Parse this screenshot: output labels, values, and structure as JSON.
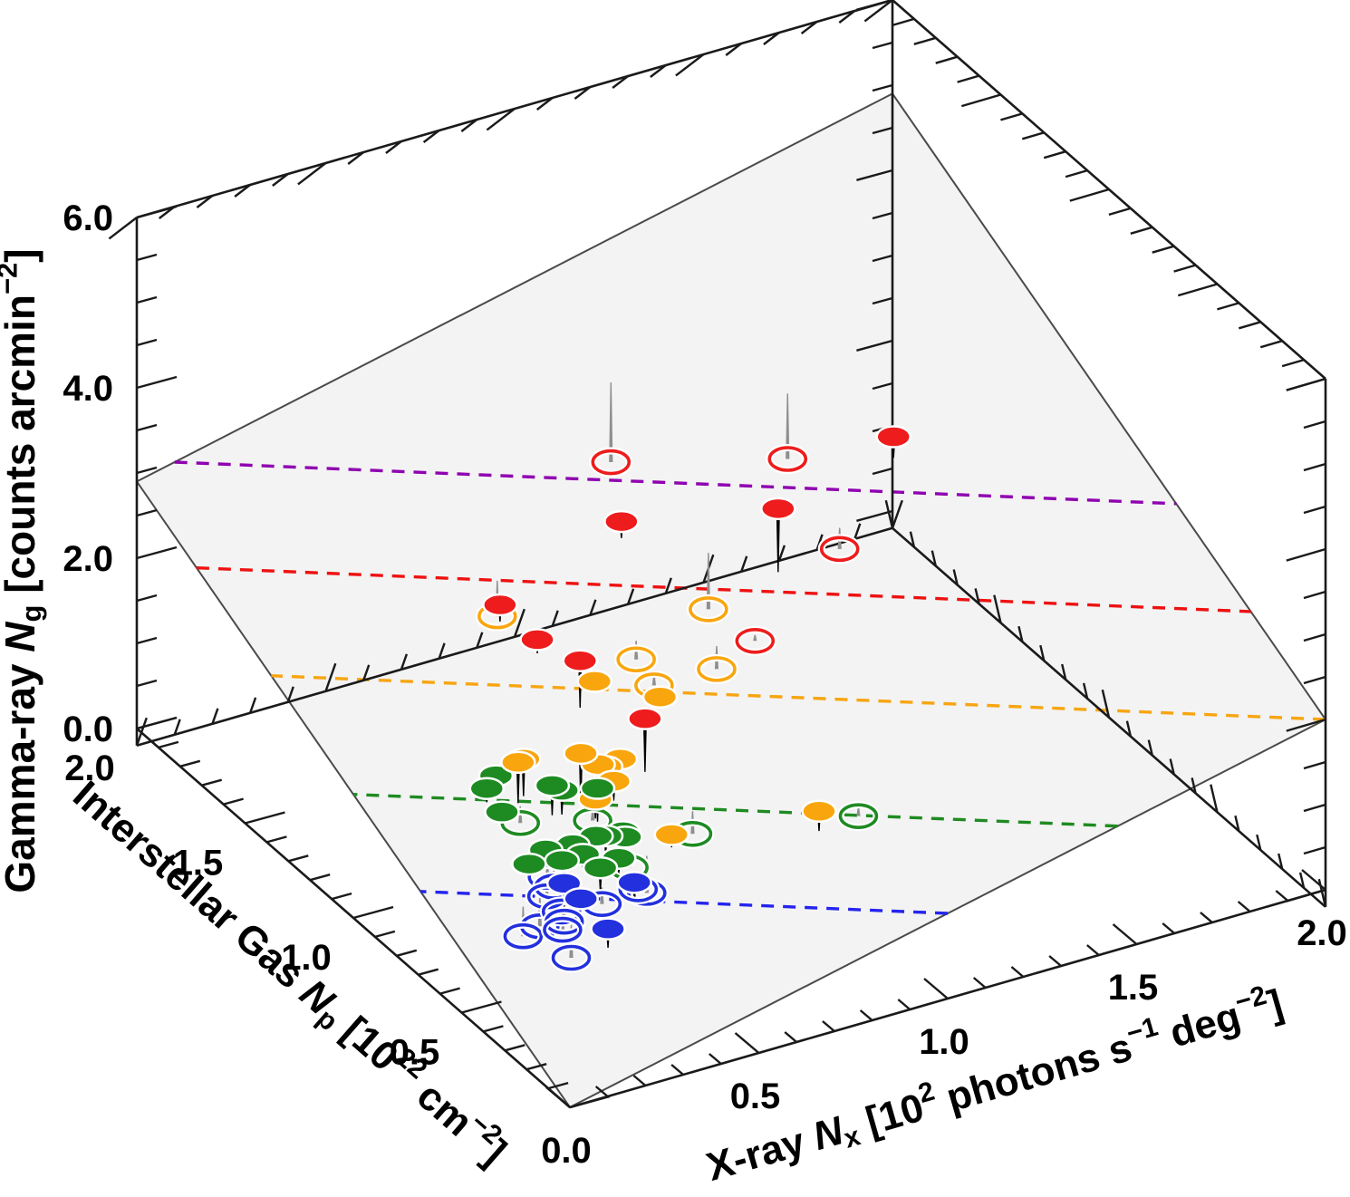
{
  "chart_data": {
    "type": "scatter",
    "subtype": "scatter3d-with-fitted-plane",
    "title": "",
    "axes": {
      "x": {
        "label": "X-ray N_x [10^2 photons s^-1 deg^-2]",
        "label_parts": [
          {
            "t": "X-ray "
          },
          {
            "t": "N",
            "i": 1
          },
          {
            "t": "x",
            "sub": 1
          },
          {
            "t": " [10"
          },
          {
            "t": "2",
            "sup": 1
          },
          {
            "t": " photons s"
          },
          {
            "t": "−1",
            "sup": 1
          },
          {
            "t": " deg"
          },
          {
            "t": "−2",
            "sup": 1
          },
          {
            "t": "]"
          }
        ],
        "range": [
          0,
          2
        ],
        "major_ticks": [
          0,
          0.5,
          1.0,
          1.5,
          2.0
        ],
        "tick_labels": [
          "0.0",
          "0.5",
          "1.0",
          "1.5",
          "2.0"
        ],
        "minor_step": 0.1
      },
      "y": {
        "label": "Interstellar Gas N_p [10^22 cm^-2]",
        "label_parts": [
          {
            "t": "Interstellar Gas "
          },
          {
            "t": "N",
            "i": 1
          },
          {
            "t": "p",
            "sub": 1
          },
          {
            "t": " [10"
          },
          {
            "t": "22",
            "sup": 1
          },
          {
            "t": " cm"
          },
          {
            "t": "−2",
            "sup": 1
          },
          {
            "t": "]"
          }
        ],
        "range": [
          0,
          2
        ],
        "major_ticks": [
          0,
          0.5,
          1.0,
          1.5,
          2.0
        ],
        "tick_labels": [
          "0.0",
          "0.5",
          "1.0",
          "1.5",
          "2.0"
        ],
        "minor_step": 0.1
      },
      "z": {
        "label": "Gamma-ray N_g [counts arcmin^-2]",
        "label_parts": [
          {
            "t": "Gamma-ray "
          },
          {
            "t": "N",
            "i": 1
          },
          {
            "t": "g",
            "sub": 1
          },
          {
            "t": " [counts arcmin"
          },
          {
            "t": "−2",
            "sup": 1
          },
          {
            "t": "]"
          }
        ],
        "range": [
          0,
          6
        ],
        "major_ticks": [
          0,
          2,
          4,
          6
        ],
        "tick_labels": [
          "0.0",
          "2.0",
          "4.0",
          "6.0"
        ],
        "minor_step": 0.5
      }
    },
    "fit_plane": {
      "equation": "z = 1.00*x + 1.45*y",
      "intercept": 0.0,
      "coef_x": 1.0,
      "coef_y": 1.45,
      "fill": "#f3f3f3",
      "edge_color": "#4a4a4a"
    },
    "contour_lines": [
      {
        "level": 3.0,
        "color": "#8f00b0",
        "name": "purple"
      },
      {
        "level": 2.5,
        "color": "#ee1111",
        "name": "red"
      },
      {
        "level": 2.0,
        "color": "#f7a511",
        "name": "orange"
      },
      {
        "level": 1.45,
        "color": "#1f8b22",
        "name": "green"
      },
      {
        "level": 1.0,
        "color": "#2424ee",
        "name": "blue"
      }
    ],
    "marker_legend": {
      "filled": "point above fitted plane (black drop line)",
      "open": "point below fitted plane (gray drop line)"
    },
    "series": [
      {
        "name": "red",
        "color": "#ee1c1c",
        "points": [
          {
            "x": 1.51,
            "y": 1.14,
            "z": 3.41,
            "filled": true
          },
          {
            "x": 1.13,
            "y": 1.01,
            "z": 3.34,
            "filled": true
          },
          {
            "x": 0.87,
            "y": 1.28,
            "z": 2.92,
            "filled": true
          },
          {
            "x": 0.52,
            "y": 1.23,
            "z": 2.5,
            "filled": true
          },
          {
            "x": 0.55,
            "y": 1.11,
            "z": 2.32,
            "filled": true
          },
          {
            "x": 0.56,
            "y": 0.93,
            "z": 2.46,
            "filled": true
          },
          {
            "x": 0.6,
            "y": 0.7,
            "z": 2.24,
            "filled": true
          },
          {
            "x": 1.06,
            "y": 1.66,
            "z": 2.53,
            "filled": false
          },
          {
            "x": 1.39,
            "y": 1.42,
            "z": 2.68,
            "filled": false
          },
          {
            "x": 1.31,
            "y": 1.04,
            "z": 2.57,
            "filled": false
          },
          {
            "x": 1.0,
            "y": 0.89,
            "z": 2.22,
            "filled": false
          }
        ]
      },
      {
        "name": "orange",
        "color": "#f9a60e",
        "points": [
          {
            "x": 0.31,
            "y": 0.78,
            "z": 1.92,
            "filled": true
          },
          {
            "x": 0.33,
            "y": 0.79,
            "z": 1.91,
            "filled": true
          },
          {
            "x": 0.43,
            "y": 0.7,
            "z": 2.05,
            "filled": true
          },
          {
            "x": 0.47,
            "y": 0.69,
            "z": 1.89,
            "filled": true
          },
          {
            "x": 0.49,
            "y": 0.69,
            "z": 1.84,
            "filled": true
          },
          {
            "x": 0.54,
            "y": 0.71,
            "z": 1.82,
            "filled": true
          },
          {
            "x": 0.5,
            "y": 0.67,
            "z": 1.7,
            "filled": true
          },
          {
            "x": 0.44,
            "y": 0.65,
            "z": 1.61,
            "filled": true
          },
          {
            "x": 0.61,
            "y": 0.95,
            "z": 2.11,
            "filled": true
          },
          {
            "x": 0.72,
            "y": 0.84,
            "z": 2.03,
            "filled": true
          },
          {
            "x": 0.86,
            "y": 0.35,
            "z": 1.6,
            "filled": true
          },
          {
            "x": 0.55,
            "y": 0.49,
            "z": 1.41,
            "filled": true
          },
          {
            "x": 0.75,
            "y": 0.92,
            "z": 1.95,
            "filled": false
          },
          {
            "x": 0.76,
            "y": 1.02,
            "z": 2.02,
            "filled": false
          },
          {
            "x": 1.02,
            "y": 1.14,
            "z": 2.01,
            "filled": false
          },
          {
            "x": 0.91,
            "y": 0.91,
            "z": 1.96,
            "filled": false
          },
          {
            "x": 0.57,
            "y": 1.33,
            "z": 2.08,
            "filled": false
          }
        ]
      },
      {
        "name": "green",
        "color": "#1e8b22",
        "points": [
          {
            "x": 0.28,
            "y": 0.83,
            "z": 1.69,
            "filled": true
          },
          {
            "x": 0.25,
            "y": 0.82,
            "z": 1.6,
            "filled": true
          },
          {
            "x": 0.36,
            "y": 0.71,
            "z": 1.74,
            "filled": true
          },
          {
            "x": 0.38,
            "y": 0.7,
            "z": 1.68,
            "filled": true
          },
          {
            "x": 0.44,
            "y": 0.64,
            "z": 1.76,
            "filled": true
          },
          {
            "x": 0.25,
            "y": 0.75,
            "z": 1.48,
            "filled": true
          },
          {
            "x": 0.39,
            "y": 0.56,
            "z": 1.44,
            "filled": true
          },
          {
            "x": 0.41,
            "y": 0.55,
            "z": 1.44,
            "filled": true
          },
          {
            "x": 0.45,
            "y": 0.54,
            "z": 1.46,
            "filled": true
          },
          {
            "x": 0.45,
            "y": 0.53,
            "z": 1.42,
            "filled": true
          },
          {
            "x": 0.34,
            "y": 0.58,
            "z": 1.36,
            "filled": true
          },
          {
            "x": 0.28,
            "y": 0.6,
            "z": 1.33,
            "filled": true
          },
          {
            "x": 0.3,
            "y": 0.56,
            "z": 1.27,
            "filled": true
          },
          {
            "x": 0.23,
            "y": 0.59,
            "z": 1.25,
            "filled": true
          },
          {
            "x": 0.35,
            "y": 0.47,
            "z": 1.32,
            "filled": true
          },
          {
            "x": 0.41,
            "y": 0.49,
            "z": 1.31,
            "filled": true
          },
          {
            "x": 0.35,
            "y": 0.55,
            "z": 1.3,
            "filled": true
          },
          {
            "x": 0.31,
            "y": 0.77,
            "z": 1.23,
            "filled": false
          },
          {
            "x": 0.45,
            "y": 0.68,
            "z": 1.28,
            "filled": false
          },
          {
            "x": 0.46,
            "y": 0.53,
            "z": 1.05,
            "filled": false
          },
          {
            "x": 0.64,
            "y": 0.55,
            "z": 1.17,
            "filled": false
          },
          {
            "x": 0.97,
            "y": 0.36,
            "z": 1.38,
            "filled": false
          }
        ]
      },
      {
        "name": "blue",
        "color": "#2330dd",
        "points": [
          {
            "x": 0.26,
            "y": 0.48,
            "z": 1.23,
            "filled": true
          },
          {
            "x": 0.4,
            "y": 0.4,
            "z": 1.24,
            "filled": true
          },
          {
            "x": 0.27,
            "y": 0.42,
            "z": 1.17,
            "filled": true
          },
          {
            "x": 0.29,
            "y": 0.33,
            "z": 0.99,
            "filled": true
          },
          {
            "x": 0.29,
            "y": 0.61,
            "z": 0.98,
            "filled": false
          },
          {
            "x": 0.29,
            "y": 0.58,
            "z": 0.93,
            "filled": false
          },
          {
            "x": 0.49,
            "y": 0.5,
            "z": 0.78,
            "filled": false
          },
          {
            "x": 0.45,
            "y": 0.47,
            "z": 0.94,
            "filled": false
          },
          {
            "x": 0.26,
            "y": 0.56,
            "z": 0.9,
            "filled": false
          },
          {
            "x": 0.36,
            "y": 0.48,
            "z": 0.86,
            "filled": false
          },
          {
            "x": 0.27,
            "y": 0.51,
            "z": 0.82,
            "filled": false
          },
          {
            "x": 0.26,
            "y": 0.48,
            "z": 0.78,
            "filled": false
          },
          {
            "x": 0.23,
            "y": 0.54,
            "z": 0.63,
            "filled": false
          },
          {
            "x": 0.18,
            "y": 0.53,
            "z": 0.6,
            "filled": false
          },
          {
            "x": 0.25,
            "y": 0.47,
            "z": 0.72,
            "filled": false
          },
          {
            "x": 0.25,
            "y": 0.43,
            "z": 0.48,
            "filled": false
          }
        ]
      }
    ],
    "layout_hints": {
      "grid": false,
      "legend": "none",
      "box_floor_z": -0.2,
      "colors_bin_by": "gamma-ray intensity level matching dashed contour colors"
    }
  }
}
